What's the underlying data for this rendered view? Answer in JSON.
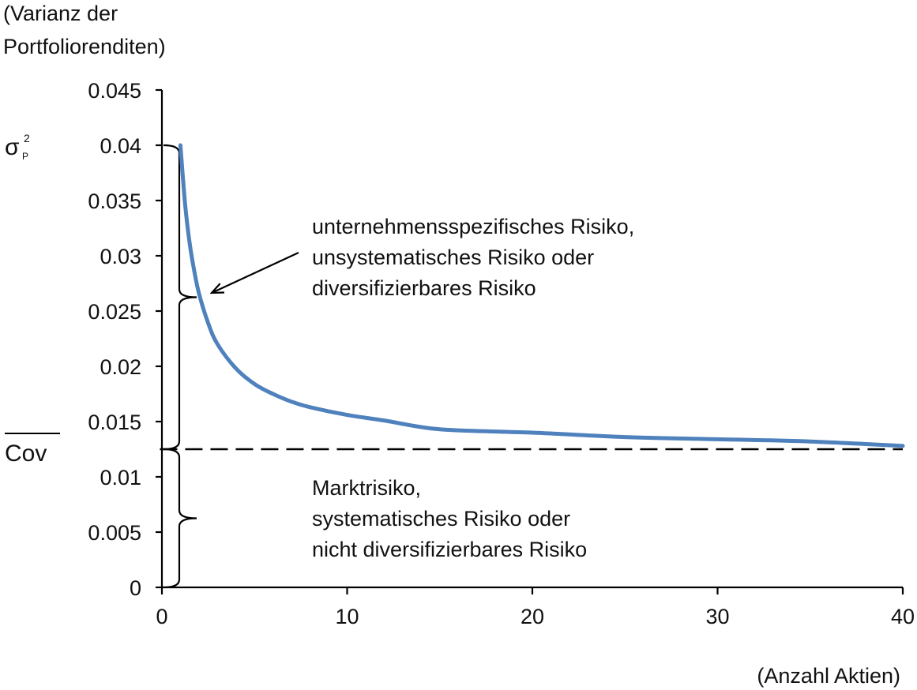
{
  "chart_data": {
    "type": "line",
    "title": "",
    "ylabel": [
      "(Varianz der",
      "Portfoliorenditen)"
    ],
    "xlabel": "(Anzahl Aktien)",
    "xlim": [
      0,
      40
    ],
    "ylim": [
      0,
      0.045
    ],
    "x_ticks": [
      "0",
      "10",
      "20",
      "30",
      "40"
    ],
    "y_ticks": [
      "0",
      "0.005",
      "0.01",
      "0.015",
      "0.02",
      "0.025",
      "0.03",
      "0.035",
      "0.04",
      "0.045"
    ],
    "grid": false,
    "legend": "none",
    "series": [
      {
        "color": "#4f81bd",
        "style": "solid",
        "x": [
          1,
          1.25,
          1.5,
          1.75,
          2,
          2.5,
          3,
          4,
          5,
          6,
          7,
          8,
          10,
          12,
          15,
          20,
          25,
          30,
          35,
          40
        ],
        "y": [
          0.04,
          0.0347,
          0.0311,
          0.0286,
          0.0266,
          0.0239,
          0.022,
          0.0198,
          0.0184,
          0.0175,
          0.0168,
          0.0163,
          0.0156,
          0.0151,
          0.0143,
          0.014,
          0.0136,
          0.0134,
          0.0132,
          0.0128
        ]
      },
      {
        "color": "#000000",
        "style": "dashed",
        "x": [
          1,
          40
        ],
        "y": [
          0.0125,
          0.0125
        ]
      }
    ],
    "symbols": {
      "sigma": "σ",
      "sigma_sup": "2",
      "sigma_sub": "P",
      "cov": "Cov"
    },
    "annotations": {
      "upper": [
        "unternehmensspezifisches Risiko,",
        "unsystematisches Risiko oder",
        "diversifizierbares Risiko"
      ],
      "lower": [
        "Marktrisiko,",
        "systematisches Risiko oder",
        "nicht diversifizierbares Risiko"
      ]
    },
    "colors": {
      "curve": "#4f81bd",
      "axis": "#000000"
    }
  }
}
